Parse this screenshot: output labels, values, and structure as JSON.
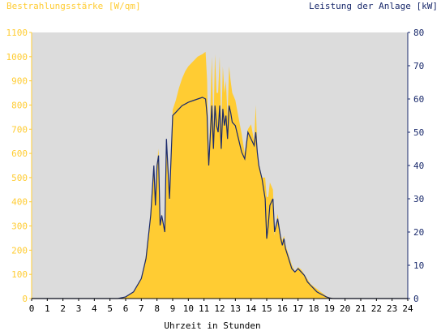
{
  "chart_data": {
    "type": "area",
    "left_axis_label": "Bestrahlungsstärke [W/qm]",
    "right_axis_label": "Leistung der Anlage [kW]",
    "xlabel": "Uhrzeit in Stunden",
    "xlim": [
      0,
      24
    ],
    "ylim_left": [
      0,
      1100
    ],
    "ylim_right": [
      0,
      80
    ],
    "x_ticks": [
      "0",
      "1",
      "2",
      "3",
      "4",
      "5",
      "6",
      "7",
      "8",
      "9",
      "10",
      "11",
      "12",
      "13",
      "14",
      "15",
      "16",
      "17",
      "18",
      "19",
      "20",
      "21",
      "22",
      "23",
      "24"
    ],
    "y_left_ticks": [
      "0",
      "100",
      "200",
      "300",
      "400",
      "500",
      "600",
      "700",
      "800",
      "900",
      "1000",
      "1100"
    ],
    "y_right_ticks": [
      "0",
      "10",
      "20",
      "30",
      "40",
      "50",
      "60",
      "70",
      "80"
    ],
    "colors": {
      "irradiance": "#ffcc33",
      "power": "#1a2a6c",
      "plot_bg": "#dcdcdc"
    },
    "series": [
      {
        "name": "Bestrahlungsstärke [W/qm]",
        "axis": "left",
        "x": [
          5.5,
          6.0,
          6.5,
          7.0,
          7.3,
          7.6,
          7.8,
          7.9,
          8.0,
          8.1,
          8.2,
          8.3,
          8.5,
          8.6,
          8.8,
          9.0,
          9.2,
          9.4,
          9.6,
          9.8,
          10.0,
          10.3,
          10.6,
          10.9,
          11.1,
          11.2,
          11.3,
          11.5,
          11.6,
          11.7,
          11.8,
          11.9,
          12.0,
          12.1,
          12.2,
          12.3,
          12.4,
          12.5,
          12.6,
          12.7,
          12.8,
          13.0,
          13.2,
          13.4,
          13.6,
          13.8,
          14.0,
          14.2,
          14.3,
          14.4,
          14.5,
          14.7,
          14.9,
          15.0,
          15.1,
          15.2,
          15.4,
          15.5,
          15.7,
          15.9,
          16.0,
          16.1,
          16.2,
          16.4,
          16.6,
          16.8,
          17.0,
          17.2,
          17.4,
          17.6,
          17.8,
          18.0,
          18.2,
          18.4,
          18.6,
          18.8,
          19.0,
          19.2,
          19.5
        ],
        "values": [
          0,
          5,
          30,
          80,
          180,
          350,
          550,
          400,
          560,
          620,
          300,
          350,
          280,
          650,
          400,
          780,
          820,
          870,
          910,
          940,
          960,
          980,
          1000,
          1010,
          1020,
          900,
          560,
          1000,
          700,
          1010,
          850,
          850,
          1000,
          700,
          960,
          850,
          900,
          750,
          960,
          900,
          850,
          820,
          750,
          680,
          600,
          700,
          720,
          650,
          800,
          620,
          560,
          500,
          500,
          420,
          420,
          480,
          450,
          260,
          350,
          260,
          240,
          260,
          220,
          180,
          140,
          110,
          130,
          120,
          100,
          80,
          60,
          50,
          40,
          30,
          20,
          10,
          5,
          2,
          0
        ]
      },
      {
        "name": "Leistung der Anlage [kW]",
        "axis": "right",
        "x": [
          5.5,
          6.0,
          6.5,
          7.0,
          7.3,
          7.6,
          7.8,
          7.9,
          8.0,
          8.1,
          8.2,
          8.3,
          8.5,
          8.6,
          8.8,
          9.0,
          9.2,
          9.4,
          9.6,
          9.8,
          10.0,
          10.3,
          10.6,
          10.9,
          11.1,
          11.2,
          11.3,
          11.5,
          11.6,
          11.7,
          11.8,
          11.9,
          12.0,
          12.1,
          12.2,
          12.3,
          12.4,
          12.5,
          12.6,
          12.7,
          12.8,
          13.0,
          13.2,
          13.4,
          13.6,
          13.8,
          14.0,
          14.2,
          14.3,
          14.4,
          14.5,
          14.7,
          14.9,
          15.0,
          15.1,
          15.2,
          15.4,
          15.5,
          15.7,
          15.9,
          16.0,
          16.1,
          16.2,
          16.4,
          16.6,
          16.8,
          17.0,
          17.2,
          17.4,
          17.6,
          17.8,
          18.0,
          18.2,
          18.4,
          18.6,
          18.8,
          19.0,
          19.2,
          19.5
        ],
        "values": [
          0,
          0.5,
          2,
          6,
          12,
          25,
          40,
          28,
          40,
          43,
          22,
          25,
          20,
          48,
          30,
          55,
          56,
          57,
          58,
          58.5,
          59,
          59.5,
          60,
          60.5,
          60,
          55,
          40,
          58,
          45,
          58,
          52,
          50,
          58,
          45,
          57,
          52,
          55,
          48,
          58,
          56,
          53,
          52,
          48,
          44,
          42,
          50,
          48,
          46,
          50,
          44,
          40,
          36,
          30,
          18,
          22,
          28,
          30,
          20,
          24,
          18,
          16,
          18,
          15,
          12,
          9,
          8,
          9,
          8,
          7,
          5,
          4,
          3,
          2,
          1.5,
          1,
          0.5,
          0.2,
          0,
          0
        ]
      }
    ]
  }
}
